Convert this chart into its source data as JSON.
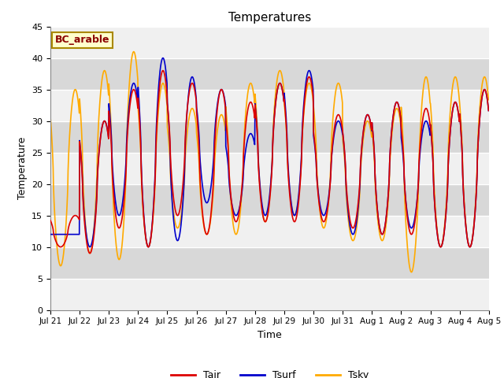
{
  "title": "Temperatures",
  "xlabel": "Time",
  "ylabel": "Temperature",
  "ylim": [
    0,
    45
  ],
  "yticks": [
    0,
    5,
    10,
    15,
    20,
    25,
    30,
    35,
    40,
    45
  ],
  "legend_label": "BC_arable",
  "line_labels": [
    "Tair",
    "Tsurf",
    "Tsky"
  ],
  "line_colors": [
    "#dd0000",
    "#0000cc",
    "#ffaa00"
  ],
  "fig_bg_color": "#ffffff",
  "plot_bg_color": "#d8d8d8",
  "grid_color": "#ffffff",
  "n_days": 15,
  "samples_per_day": 96,
  "tick_labels": [
    "Jul 21",
    "Jul 22",
    "Jul 23",
    "Jul 24",
    "Jul 25",
    "Jul 26",
    "Jul 27",
    "Jul 28",
    "Jul 29",
    "Jul 30",
    "Jul 31",
    "Aug 1",
    "Aug 2",
    "Aug 3",
    "Aug 4",
    "Aug 5"
  ],
  "tair_peaks": [
    15,
    30,
    35,
    38,
    36,
    35,
    33,
    36,
    37,
    31,
    31,
    33,
    32,
    33,
    35
  ],
  "tair_troughs": [
    10,
    9,
    13,
    10,
    15,
    12,
    14,
    14,
    14,
    14,
    13,
    12,
    12,
    10,
    10
  ],
  "tsurf_peaks": [
    12,
    30,
    36,
    40,
    37,
    35,
    28,
    36,
    38,
    30,
    31,
    33,
    30,
    33,
    35
  ],
  "tsurf_troughs": [
    12,
    10,
    15,
    10,
    11,
    17,
    15,
    15,
    15,
    15,
    12,
    12,
    13,
    10,
    10
  ],
  "tsky_peaks": [
    35,
    38,
    41,
    36,
    32,
    31,
    36,
    38,
    36,
    36,
    30,
    32,
    37,
    37,
    37
  ],
  "tsky_troughs": [
    7,
    9,
    8,
    10,
    13,
    12,
    12,
    14,
    15,
    13,
    11,
    11,
    6,
    10,
    10
  ]
}
